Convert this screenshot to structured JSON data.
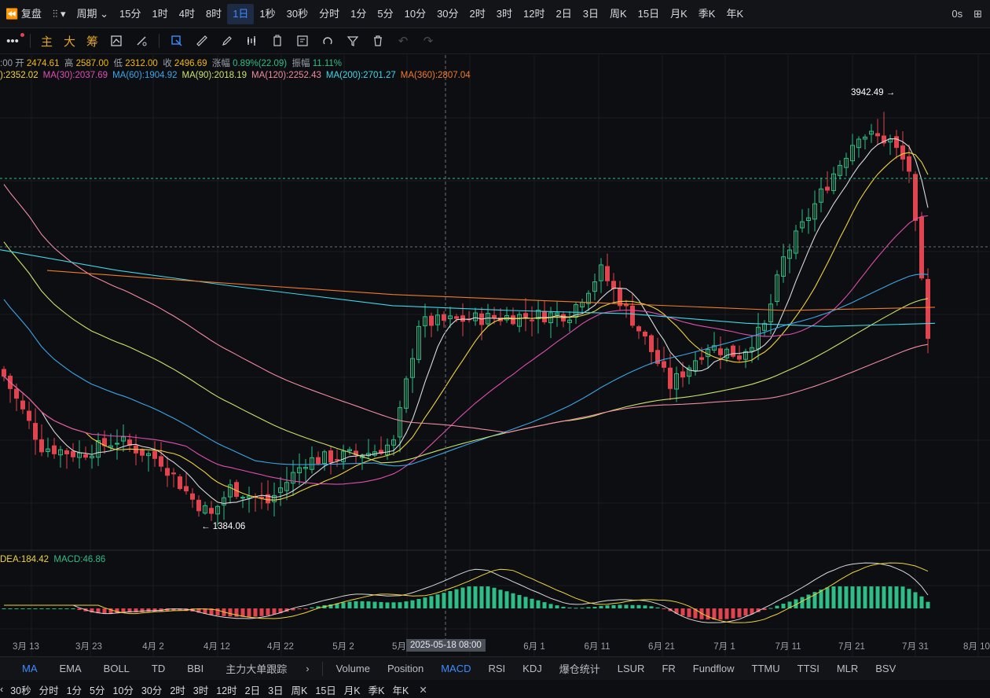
{
  "topbar": {
    "replay_label": "复盘",
    "period_label": "周期",
    "timeframes": [
      "15分",
      "1时",
      "4时",
      "8时",
      "1日",
      "1秒",
      "30秒",
      "分时",
      "1分",
      "5分",
      "10分",
      "30分",
      "2时",
      "3时",
      "12时",
      "2日",
      "3日",
      "周K",
      "15日",
      "月K",
      "季K",
      "年K"
    ],
    "active_timeframe": "1日",
    "right_label": "0s"
  },
  "toolbar": {
    "main_label": "主",
    "big_label": "大",
    "chip_label": "筹"
  },
  "ohlc": {
    "time": ":00",
    "open_label": "开",
    "open": "2474.61",
    "high_label": "高",
    "high": "2587.00",
    "low_label": "低",
    "low": "2312.00",
    "close_label": "收",
    "close": "2496.69",
    "change_label": "涨幅",
    "change": "0.89%(22.09)",
    "amp_label": "振幅",
    "amp": "11.11%"
  },
  "ma_legend": [
    {
      "text": "):2352.02",
      "color": "#f0d43a"
    },
    {
      "text": "MA(30):2037.69",
      "color": "#e04fb0"
    },
    {
      "text": "MA(60):1904.92",
      "color": "#3aa6e8"
    },
    {
      "text": "MA(90):2018.19",
      "color": "#c9e26a"
    },
    {
      "text": "MA(120):2252.43",
      "color": "#f08aa0"
    },
    {
      "text": "MA(200):2701.27",
      "color": "#3ed8e8"
    },
    {
      "text": "MA(360):2807.04",
      "color": "#f07a2a"
    }
  ],
  "macd_legend": {
    "dea": "DEA:184.42",
    "macd": "MACD:46.86"
  },
  "annotations": {
    "high": "3942.49 →",
    "low": "← 1384.06"
  },
  "crosshair_date": "2025-05-18 08:00",
  "x_ticks": [
    "3月 13",
    "3月 23",
    "4月 2",
    "4月 12",
    "4月 22",
    "5月 2",
    "5月",
    "6月 1",
    "6月 11",
    "6月 21",
    "7月 1",
    "7月 11",
    "7月 21",
    "7月 31",
    "8月 10"
  ],
  "indicator_tabs_left": [
    "MA",
    "EMA",
    "BOLL",
    "TD",
    "BBI",
    "主力大单跟踪"
  ],
  "indicator_tabs_right": [
    "Volume",
    "Position",
    "MACD",
    "RSI",
    "KDJ",
    "爆仓统计",
    "LSUR",
    "FR",
    "Fundflow",
    "TTMU",
    "TTSI",
    "MLR",
    "BSV"
  ],
  "active_left_tab": "MA",
  "active_right_tab": "MACD",
  "bottom_timeframes": [
    "30秒",
    "分时",
    "1分",
    "5分",
    "10分",
    "30分",
    "2时",
    "3时",
    "12时",
    "2日",
    "3日",
    "周K",
    "15日",
    "月K",
    "季K",
    "年K"
  ],
  "colors": {
    "up": "#2ebd85",
    "down": "#e0454f",
    "accent": "#3d8bfd"
  },
  "chart_data": {
    "type": "candlestick",
    "price_axis": {
      "min": 1250,
      "max": 4150
    },
    "high_point": 3942.49,
    "low_point": 1384.06,
    "last_close": 2496.69
  }
}
